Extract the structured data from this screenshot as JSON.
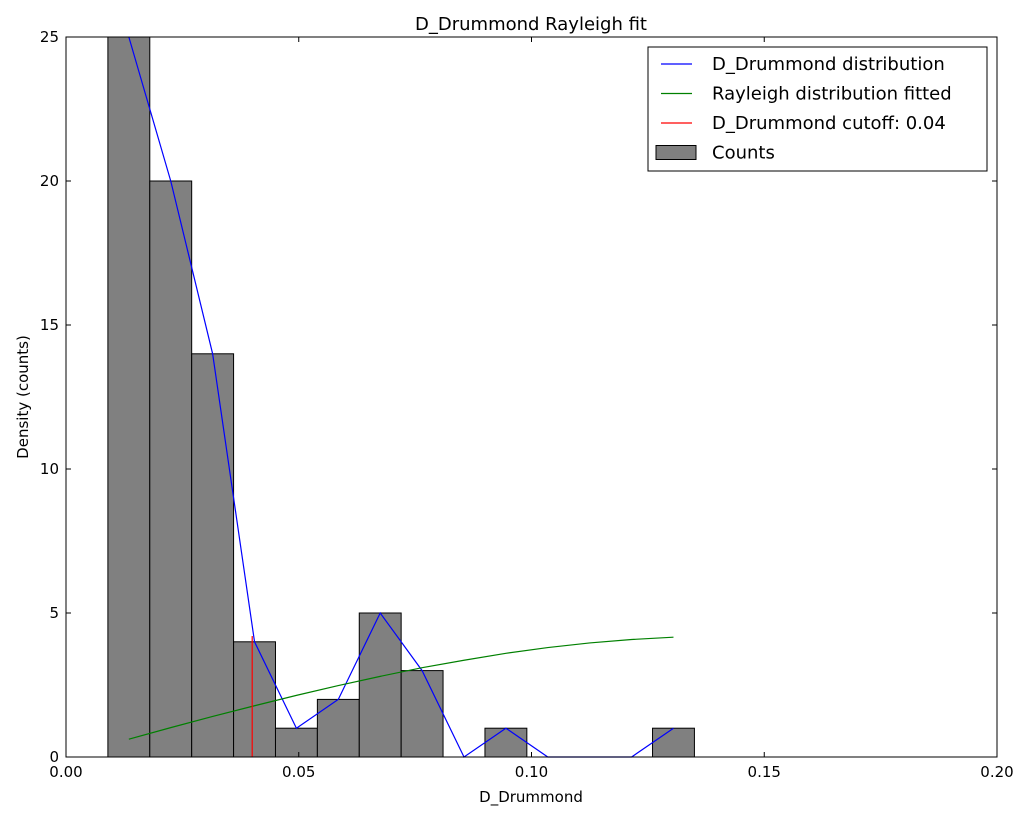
{
  "chart_data": {
    "type": "bar",
    "title": "D_Drummond Rayleigh fit",
    "xlabel": "D_Drummond",
    "ylabel": "Density (counts)",
    "xlim": [
      0.0,
      0.2
    ],
    "ylim": [
      0,
      25
    ],
    "grid": false,
    "legend_position": "top-right",
    "x_ticks": [
      0.0,
      0.05,
      0.1,
      0.15,
      0.2
    ],
    "x_tick_labels": [
      "0.00",
      "0.05",
      "0.10",
      "0.15",
      "0.20"
    ],
    "y_ticks": [
      0,
      5,
      10,
      15,
      20,
      25
    ],
    "y_tick_labels": [
      "0",
      "5",
      "10",
      "15",
      "20",
      "25"
    ],
    "histogram": {
      "name": "Counts",
      "color": "#808080",
      "bin_edges": [
        0.009,
        0.018,
        0.027,
        0.036,
        0.045,
        0.054,
        0.063,
        0.072,
        0.081,
        0.09,
        0.099,
        0.108,
        0.117,
        0.126,
        0.135
      ],
      "counts": [
        25,
        20,
        14,
        4,
        1,
        2,
        5,
        3,
        0,
        1,
        0,
        0,
        0,
        1
      ]
    },
    "series": [
      {
        "name": "D_Drummond distribution",
        "type": "line",
        "color": "#0000ff",
        "x": [
          0.0135,
          0.0225,
          0.0315,
          0.0405,
          0.0495,
          0.0585,
          0.0675,
          0.0765,
          0.0855,
          0.0945,
          0.1035,
          0.1125,
          0.1215,
          0.1305
        ],
        "y": [
          25,
          20,
          14,
          4,
          1,
          2,
          5,
          3,
          0,
          1,
          0,
          0,
          0,
          1
        ]
      },
      {
        "name": "Rayleigh distribution fitted",
        "type": "line",
        "color": "#008000",
        "x": [
          0.0135,
          0.0225,
          0.0315,
          0.0405,
          0.0495,
          0.0585,
          0.0675,
          0.0765,
          0.0855,
          0.0945,
          0.1035,
          0.1125,
          0.1215,
          0.1305
        ],
        "y": [
          0.62,
          1.02,
          1.41,
          1.78,
          2.14,
          2.48,
          2.8,
          3.1,
          3.36,
          3.6,
          3.8,
          3.96,
          4.08,
          4.16
        ]
      },
      {
        "name": "D_Drummond cutoff: 0.04",
        "type": "vline",
        "color": "#ff0000",
        "x": 0.04,
        "y": [
          0,
          4.2
        ]
      }
    ],
    "legend": [
      {
        "label": "D_Drummond distribution",
        "kind": "line",
        "color": "#0000ff"
      },
      {
        "label": "Rayleigh distribution fitted",
        "kind": "line",
        "color": "#008000"
      },
      {
        "label": "D_Drummond cutoff: 0.04",
        "kind": "line",
        "color": "#ff0000"
      },
      {
        "label": "Counts",
        "kind": "patch",
        "color": "#808080"
      }
    ]
  }
}
